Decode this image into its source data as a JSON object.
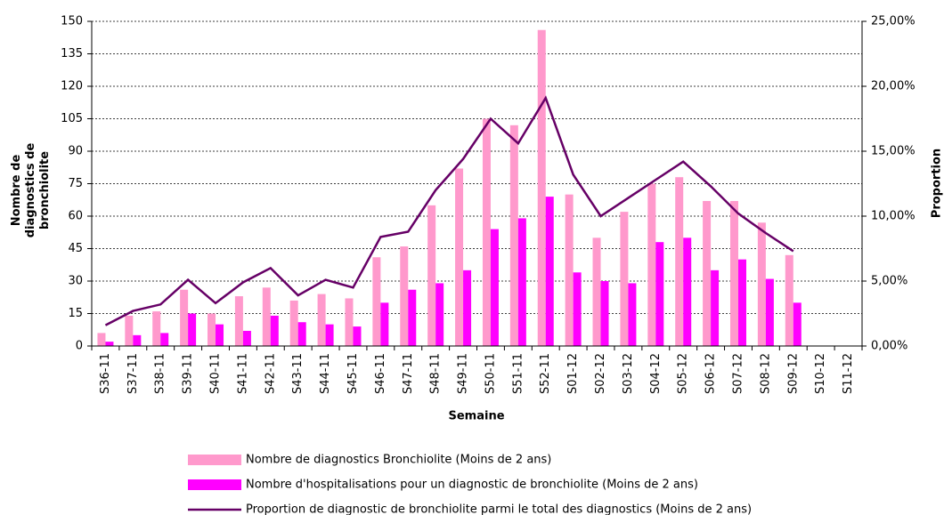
{
  "chart_data": {
    "type": "bar-line",
    "xlabel": "Semaine",
    "ylabel": "Nombre de diagnostics de bronchiolite",
    "y2label": "Proportion",
    "categories": [
      "S36-11",
      "S37-11",
      "S38-11",
      "S39-11",
      "S40-11",
      "S41-11",
      "S42-11",
      "S43-11",
      "S44-11",
      "S45-11",
      "S46-11",
      "S47-11",
      "S48-11",
      "S49-11",
      "S50-11",
      "S51-11",
      "S52-11",
      "S01-12",
      "S02-12",
      "S03-12",
      "S04-12",
      "S05-12",
      "S06-12",
      "S07-12",
      "S08-12",
      "S09-12",
      "S10-12",
      "S11-12"
    ],
    "series": [
      {
        "name": "Nombre de diagnostics Bronchiolite (Moins de 2 ans)",
        "color": "#ff99cc",
        "kind": "bar",
        "values": [
          6,
          14,
          16,
          26,
          15,
          23,
          27,
          21,
          24,
          22,
          41,
          46,
          65,
          82,
          105,
          102,
          146,
          70,
          50,
          62,
          75,
          78,
          67,
          67,
          57,
          42,
          null,
          null
        ]
      },
      {
        "name": "Nombre d'hospitalisations pour un diagnostic de bronchiolite (Moins de 2 ans)",
        "color": "#ff00ff",
        "kind": "bar",
        "values": [
          2,
          5,
          6,
          15,
          10,
          7,
          14,
          11,
          10,
          9,
          20,
          26,
          29,
          35,
          54,
          59,
          69,
          34,
          30,
          29,
          48,
          50,
          35,
          40,
          31,
          20,
          null,
          null
        ]
      },
      {
        "name": "Proportion de diagnostic de bronchiolite parmi le total des diagnostics (Moins de 2 ans)",
        "color": "#660066",
        "kind": "line",
        "axis": "y2",
        "values": [
          1.6,
          2.7,
          3.2,
          5.1,
          3.3,
          4.9,
          6.0,
          3.9,
          5.1,
          4.5,
          8.4,
          8.8,
          12.0,
          14.4,
          17.5,
          15.6,
          19.1,
          13.2,
          10.0,
          11.4,
          12.8,
          14.2,
          12.3,
          10.2,
          8.7,
          7.3,
          null,
          null
        ]
      }
    ],
    "ylim": [
      0,
      150
    ],
    "yticks": [
      0,
      15,
      30,
      45,
      60,
      75,
      90,
      105,
      120,
      135,
      150
    ],
    "y2lim": [
      0,
      25
    ],
    "y2ticks": [
      {
        "value": 0,
        "label": "0,00%"
      },
      {
        "value": 5,
        "label": "5,00%"
      },
      {
        "value": 10,
        "label": "10,00%"
      },
      {
        "value": 15,
        "label": "15,00%"
      },
      {
        "value": 20,
        "label": "20,00%"
      },
      {
        "value": 25,
        "label": "25,00%"
      }
    ],
    "grid": true
  }
}
